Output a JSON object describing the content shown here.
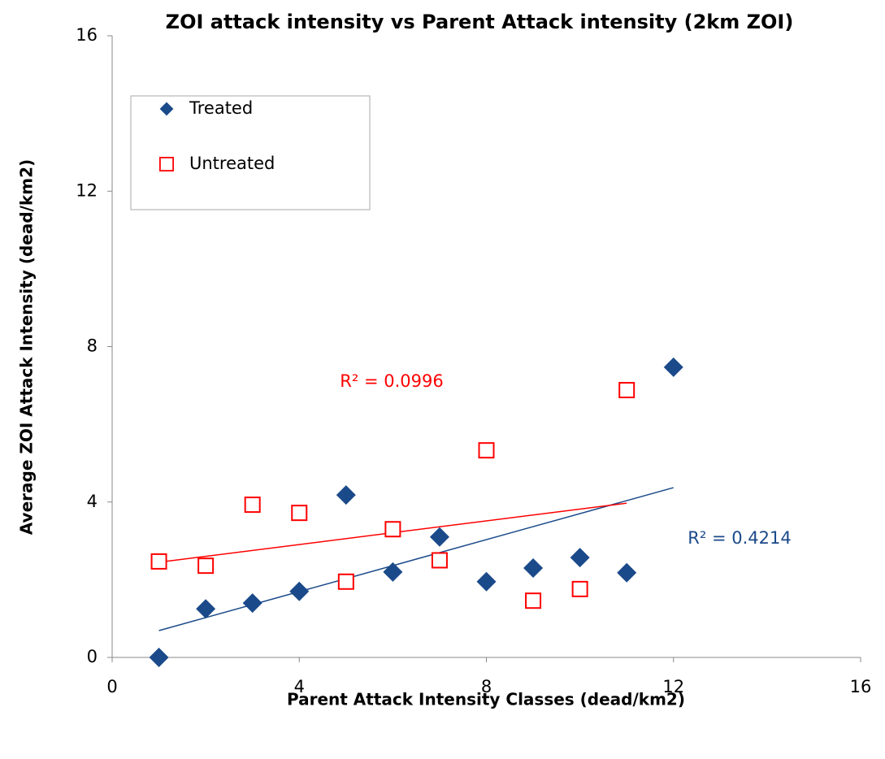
{
  "chart_data": {
    "type": "scatter",
    "title": "ZOI attack intensity vs Parent Attack intensity (2km ZOI)",
    "x_label": "Parent Attack Intensity Classes (dead/km2)",
    "y_label": "Average ZOI Attack Intensity (dead/km2)",
    "xlim": [
      0,
      16
    ],
    "xticks": [
      0,
      4,
      8,
      12,
      16
    ],
    "ylim": [
      0,
      16
    ],
    "yticks": [
      0,
      4,
      8,
      12,
      16
    ],
    "grid": false,
    "legend": "upper left",
    "series": [
      {
        "name": "Treated",
        "color": "#1b4a8a",
        "marker": "diamond",
        "x": [
          1,
          2,
          3,
          4,
          5,
          6,
          7,
          8,
          9,
          10,
          11,
          12
        ],
        "values": [
          0,
          1.25,
          1.4,
          1.7,
          4.18,
          2.2,
          3.1,
          1.95,
          2.3,
          2.57,
          2.18,
          7.47
        ],
        "trendline": {
          "x": [
            1,
            12
          ],
          "values": [
            0.69,
            4.37
          ]
        },
        "r2_label": "R² = 0.4214"
      },
      {
        "name": "Untreated",
        "color": "#ff0000",
        "marker": "square",
        "x": [
          1,
          2,
          3,
          4,
          5,
          6,
          7,
          8,
          9,
          10,
          11
        ],
        "values": [
          2.47,
          2.36,
          3.93,
          3.72,
          1.95,
          3.3,
          2.5,
          5.33,
          1.46,
          1.76,
          6.88
        ],
        "trendline": {
          "x": [
            1,
            11
          ],
          "values": [
            2.45,
            3.97
          ]
        },
        "r2_label": "R² = 0.0996"
      }
    ]
  }
}
